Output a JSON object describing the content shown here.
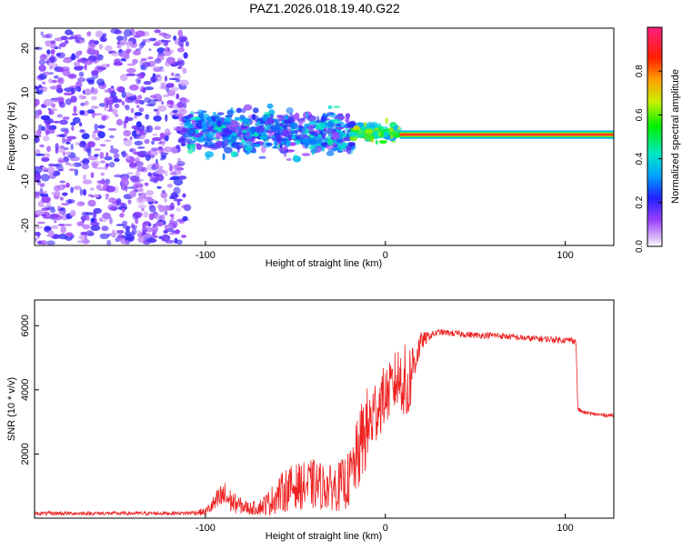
{
  "chart_data": [
    {
      "type": "heatmap",
      "title": "PAZ1.2026.018.19.40.G22",
      "xlabel": "Height of straight line (km)",
      "ylabel": "Frequency (Hz)",
      "xlim": [
        -195,
        127
      ],
      "ylim": [
        -24.5,
        24.5
      ],
      "xticks": [
        -100,
        0,
        100
      ],
      "xtick_labels": [
        "-100",
        "0",
        "100"
      ],
      "yticks": [
        -20,
        -10,
        0,
        10,
        20
      ],
      "ytick_labels": [
        "-20",
        "-10",
        "0",
        "10",
        "20"
      ],
      "colorbar": {
        "label": "Normalized spectral amplitude",
        "range": [
          0,
          1
        ],
        "ticks": [
          0.0,
          0.2,
          0.4,
          0.6,
          0.8
        ],
        "tick_labels": [
          "0.0",
          "0.2",
          "0.4",
          "0.6",
          "0.8"
        ]
      },
      "regions": [
        {
          "name": "noise",
          "x_range": [
            -195,
            -110
          ],
          "freq_spread": 24,
          "amplitude": [
            0.05,
            0.22
          ]
        },
        {
          "name": "multipath",
          "x_range": [
            -110,
            -18
          ],
          "freq_center": 1,
          "freq_spread": 7,
          "amplitude": [
            0.1,
            0.45
          ]
        },
        {
          "name": "transition",
          "x_range": [
            -18,
            8
          ],
          "freq_center": 1,
          "freq_spread": 3,
          "amplitude": [
            0.3,
            0.7
          ]
        },
        {
          "name": "line-of-sight",
          "x_range": [
            8,
            127
          ],
          "freq_center": 0.5,
          "freq_spread": 1.2,
          "amplitude": [
            0.75,
            1.0
          ]
        }
      ]
    },
    {
      "type": "line",
      "xlabel": "Height of straight line (km)",
      "ylabel": "SNR (10 * v/v)",
      "xlim": [
        -195,
        127
      ],
      "ylim": [
        0,
        6800
      ],
      "xticks": [
        -100,
        0,
        100
      ],
      "xtick_labels": [
        "-100",
        "0",
        "100"
      ],
      "yticks": [
        2000,
        4000,
        6000
      ],
      "ytick_labels": [
        "2000",
        "4000",
        "6000"
      ],
      "color": "#ee2222",
      "series": [
        {
          "name": "SNR",
          "x": [
            -195,
            -170,
            -150,
            -130,
            -110,
            -100,
            -95,
            -90,
            -85,
            -80,
            -75,
            -70,
            -65,
            -60,
            -55,
            -50,
            -45,
            -40,
            -35,
            -30,
            -25,
            -20,
            -15,
            -12,
            -10,
            -8,
            -5,
            -2,
            0,
            3,
            6,
            9,
            12,
            15,
            18,
            20,
            25,
            30,
            40,
            50,
            60,
            70,
            80,
            90,
            100,
            104,
            106,
            107,
            110,
            115,
            120,
            127
          ],
          "y": [
            150,
            150,
            150,
            150,
            160,
            200,
            450,
            700,
            500,
            380,
            300,
            340,
            480,
            700,
            900,
            1000,
            1000,
            1050,
            1000,
            950,
            1000,
            1200,
            2000,
            2600,
            2800,
            3000,
            3400,
            3700,
            3800,
            4000,
            4300,
            4400,
            3900,
            4700,
            5200,
            5500,
            5700,
            5800,
            5750,
            5700,
            5700,
            5650,
            5600,
            5580,
            5550,
            5550,
            5500,
            3400,
            3300,
            3250,
            3220,
            3200
          ],
          "noise": [
            60,
            60,
            60,
            60,
            60,
            120,
            300,
            500,
            350,
            250,
            200,
            250,
            400,
            550,
            700,
            700,
            750,
            800,
            750,
            700,
            800,
            900,
            1200,
            1400,
            1300,
            1200,
            1100,
            1000,
            900,
            900,
            1000,
            1100,
            1500,
            900,
            500,
            300,
            120,
            100,
            100,
            100,
            100,
            100,
            100,
            100,
            100,
            100,
            100,
            80,
            60,
            60,
            60,
            60
          ]
        }
      ]
    }
  ]
}
